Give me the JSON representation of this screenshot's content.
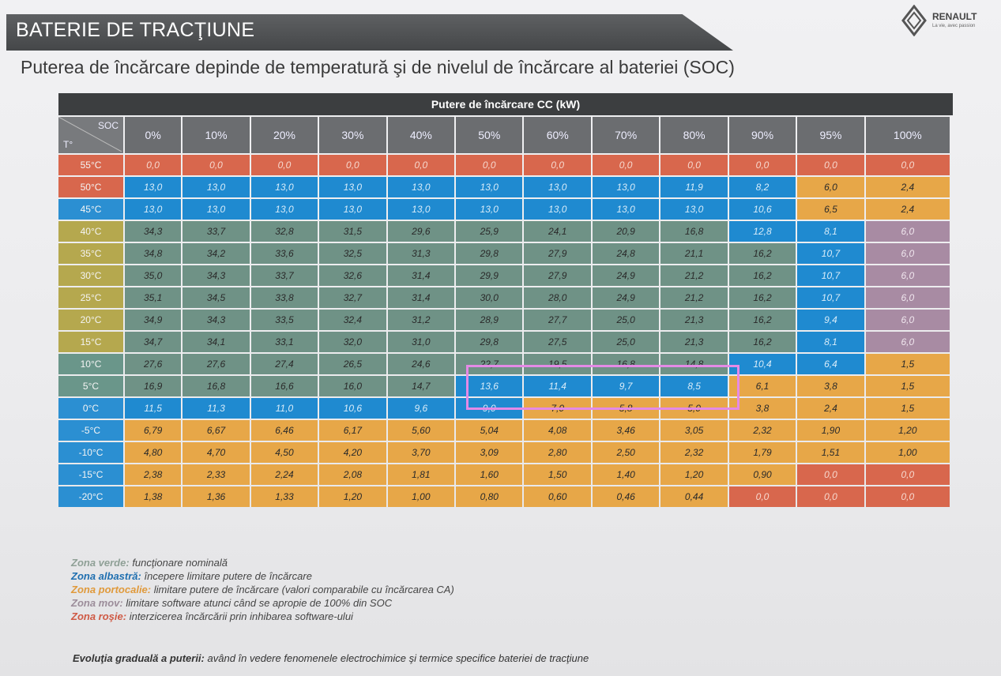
{
  "header": {
    "title": "BATERIE DE TRACŢIUNE",
    "brand": "RENAULT",
    "brand_tagline": "La vie, avec passion"
  },
  "subtitle": "Puterea de încărcare depinde de temperatură şi de nivelul de încărcare al bateriei (SOC)",
  "table": {
    "title": "Putere de încărcare CC (kW)",
    "corner_soc": "SOC",
    "corner_t": "T°",
    "columns": [
      "0%",
      "10%",
      "20%",
      "30%",
      "40%",
      "50%",
      "60%",
      "70%",
      "80%",
      "90%",
      "95%",
      "100%"
    ],
    "rows": [
      {
        "label": "55°C",
        "lc": "red",
        "cells": [
          [
            "0,0",
            "red"
          ],
          [
            "0,0",
            "red"
          ],
          [
            "0,0",
            "red"
          ],
          [
            "0,0",
            "red"
          ],
          [
            "0,0",
            "red"
          ],
          [
            "0,0",
            "red"
          ],
          [
            "0,0",
            "red"
          ],
          [
            "0,0",
            "red"
          ],
          [
            "0,0",
            "red"
          ],
          [
            "0,0",
            "red"
          ],
          [
            "0,0",
            "red"
          ],
          [
            "0,0",
            "red"
          ]
        ]
      },
      {
        "label": "50°C",
        "lc": "red",
        "cells": [
          [
            "13,0",
            "blue"
          ],
          [
            "13,0",
            "blue"
          ],
          [
            "13,0",
            "blue"
          ],
          [
            "13,0",
            "blue"
          ],
          [
            "13,0",
            "blue"
          ],
          [
            "13,0",
            "blue"
          ],
          [
            "13,0",
            "blue"
          ],
          [
            "13,0",
            "blue"
          ],
          [
            "11,9",
            "blue"
          ],
          [
            "8,2",
            "blue"
          ],
          [
            "6,0",
            "orange"
          ],
          [
            "2,4",
            "orange"
          ]
        ]
      },
      {
        "label": "45°C",
        "lc": "blue",
        "cells": [
          [
            "13,0",
            "blue"
          ],
          [
            "13,0",
            "blue"
          ],
          [
            "13,0",
            "blue"
          ],
          [
            "13,0",
            "blue"
          ],
          [
            "13,0",
            "blue"
          ],
          [
            "13,0",
            "blue"
          ],
          [
            "13,0",
            "blue"
          ],
          [
            "13,0",
            "blue"
          ],
          [
            "13,0",
            "blue"
          ],
          [
            "10,6",
            "blue"
          ],
          [
            "6,5",
            "orange"
          ],
          [
            "2,4",
            "orange"
          ]
        ]
      },
      {
        "label": "40°C",
        "lc": "olive",
        "cells": [
          [
            "34,3",
            "green"
          ],
          [
            "33,7",
            "green"
          ],
          [
            "32,8",
            "green"
          ],
          [
            "31,5",
            "green"
          ],
          [
            "29,6",
            "green"
          ],
          [
            "25,9",
            "green"
          ],
          [
            "24,1",
            "green"
          ],
          [
            "20,9",
            "green"
          ],
          [
            "16,8",
            "green"
          ],
          [
            "12,8",
            "blue"
          ],
          [
            "8,1",
            "blue"
          ],
          [
            "6,0",
            "purple"
          ]
        ]
      },
      {
        "label": "35°C",
        "lc": "olive",
        "cells": [
          [
            "34,8",
            "green"
          ],
          [
            "34,2",
            "green"
          ],
          [
            "33,6",
            "green"
          ],
          [
            "32,5",
            "green"
          ],
          [
            "31,3",
            "green"
          ],
          [
            "29,8",
            "green"
          ],
          [
            "27,9",
            "green"
          ],
          [
            "24,8",
            "green"
          ],
          [
            "21,1",
            "green"
          ],
          [
            "16,2",
            "green"
          ],
          [
            "10,7",
            "blue"
          ],
          [
            "6,0",
            "purple"
          ]
        ]
      },
      {
        "label": "30°C",
        "lc": "olive",
        "cells": [
          [
            "35,0",
            "green"
          ],
          [
            "34,3",
            "green"
          ],
          [
            "33,7",
            "green"
          ],
          [
            "32,6",
            "green"
          ],
          [
            "31,4",
            "green"
          ],
          [
            "29,9",
            "green"
          ],
          [
            "27,9",
            "green"
          ],
          [
            "24,9",
            "green"
          ],
          [
            "21,2",
            "green"
          ],
          [
            "16,2",
            "green"
          ],
          [
            "10,7",
            "blue"
          ],
          [
            "6,0",
            "purple"
          ]
        ]
      },
      {
        "label": "25°C",
        "lc": "olive",
        "cells": [
          [
            "35,1",
            "green"
          ],
          [
            "34,5",
            "green"
          ],
          [
            "33,8",
            "green"
          ],
          [
            "32,7",
            "green"
          ],
          [
            "31,4",
            "green"
          ],
          [
            "30,0",
            "green"
          ],
          [
            "28,0",
            "green"
          ],
          [
            "24,9",
            "green"
          ],
          [
            "21,2",
            "green"
          ],
          [
            "16,2",
            "green"
          ],
          [
            "10,7",
            "blue"
          ],
          [
            "6,0",
            "purple"
          ]
        ]
      },
      {
        "label": "20°C",
        "lc": "olive",
        "cells": [
          [
            "34,9",
            "green"
          ],
          [
            "34,3",
            "green"
          ],
          [
            "33,5",
            "green"
          ],
          [
            "32,4",
            "green"
          ],
          [
            "31,2",
            "green"
          ],
          [
            "28,9",
            "green"
          ],
          [
            "27,7",
            "green"
          ],
          [
            "25,0",
            "green"
          ],
          [
            "21,3",
            "green"
          ],
          [
            "16,2",
            "green"
          ],
          [
            "9,4",
            "blue"
          ],
          [
            "6,0",
            "purple"
          ]
        ]
      },
      {
        "label": "15°C",
        "lc": "olive",
        "cells": [
          [
            "34,7",
            "green"
          ],
          [
            "34,1",
            "green"
          ],
          [
            "33,1",
            "green"
          ],
          [
            "32,0",
            "green"
          ],
          [
            "31,0",
            "green"
          ],
          [
            "29,8",
            "green"
          ],
          [
            "27,5",
            "green"
          ],
          [
            "25,0",
            "green"
          ],
          [
            "21,3",
            "green"
          ],
          [
            "16,2",
            "green"
          ],
          [
            "8,1",
            "blue"
          ],
          [
            "6,0",
            "purple"
          ]
        ]
      },
      {
        "label": "10°C",
        "lc": "green",
        "cells": [
          [
            "27,6",
            "green"
          ],
          [
            "27,6",
            "green"
          ],
          [
            "27,4",
            "green"
          ],
          [
            "26,5",
            "green"
          ],
          [
            "24,6",
            "green"
          ],
          [
            "22,7",
            "green"
          ],
          [
            "19,5",
            "green"
          ],
          [
            "16,8",
            "green"
          ],
          [
            "14,8",
            "green"
          ],
          [
            "10,4",
            "blue"
          ],
          [
            "6,4",
            "blue"
          ],
          [
            "1,5",
            "orange"
          ]
        ]
      },
      {
        "label": "5°C",
        "lc": "green",
        "cells": [
          [
            "16,9",
            "green"
          ],
          [
            "16,8",
            "green"
          ],
          [
            "16,6",
            "green"
          ],
          [
            "16,0",
            "green"
          ],
          [
            "14,7",
            "green"
          ],
          [
            "13,6",
            "blue"
          ],
          [
            "11,4",
            "blue"
          ],
          [
            "9,7",
            "blue"
          ],
          [
            "8,5",
            "blue"
          ],
          [
            "6,1",
            "orange"
          ],
          [
            "3,8",
            "orange"
          ],
          [
            "1,5",
            "orange"
          ]
        ]
      },
      {
        "label": "0°C",
        "lc": "blue",
        "cells": [
          [
            "11,5",
            "blue"
          ],
          [
            "11,3",
            "blue"
          ],
          [
            "11,0",
            "blue"
          ],
          [
            "10,6",
            "blue"
          ],
          [
            "9,6",
            "blue"
          ],
          [
            "9,0",
            "blue"
          ],
          [
            "7,0",
            "orange"
          ],
          [
            "5,8",
            "orange"
          ],
          [
            "5,0",
            "orange"
          ],
          [
            "3,8",
            "orange"
          ],
          [
            "2,4",
            "orange"
          ],
          [
            "1,5",
            "orange"
          ]
        ]
      },
      {
        "label": "-5°C",
        "lc": "blue",
        "cells": [
          [
            "6,79",
            "orange"
          ],
          [
            "6,67",
            "orange"
          ],
          [
            "6,46",
            "orange"
          ],
          [
            "6,17",
            "orange"
          ],
          [
            "5,60",
            "orange"
          ],
          [
            "5,04",
            "orange"
          ],
          [
            "4,08",
            "orange"
          ],
          [
            "3,46",
            "orange"
          ],
          [
            "3,05",
            "orange"
          ],
          [
            "2,32",
            "orange"
          ],
          [
            "1,90",
            "orange"
          ],
          [
            "1,20",
            "orange"
          ]
        ]
      },
      {
        "label": "-10°C",
        "lc": "blue",
        "cells": [
          [
            "4,80",
            "orange"
          ],
          [
            "4,70",
            "orange"
          ],
          [
            "4,50",
            "orange"
          ],
          [
            "4,20",
            "orange"
          ],
          [
            "3,70",
            "orange"
          ],
          [
            "3,09",
            "orange"
          ],
          [
            "2,80",
            "orange"
          ],
          [
            "2,50",
            "orange"
          ],
          [
            "2,32",
            "orange"
          ],
          [
            "1,79",
            "orange"
          ],
          [
            "1,51",
            "orange"
          ],
          [
            "1,00",
            "orange"
          ]
        ]
      },
      {
        "label": "-15°C",
        "lc": "blue",
        "cells": [
          [
            "2,38",
            "orange"
          ],
          [
            "2,33",
            "orange"
          ],
          [
            "2,24",
            "orange"
          ],
          [
            "2,08",
            "orange"
          ],
          [
            "1,81",
            "orange"
          ],
          [
            "1,60",
            "orange"
          ],
          [
            "1,50",
            "orange"
          ],
          [
            "1,40",
            "orange"
          ],
          [
            "1,20",
            "orange"
          ],
          [
            "0,90",
            "orange"
          ],
          [
            "0,0",
            "red"
          ],
          [
            "0,0",
            "red"
          ]
        ]
      },
      {
        "label": "-20°C",
        "lc": "blue",
        "cells": [
          [
            "1,38",
            "orange"
          ],
          [
            "1,36",
            "orange"
          ],
          [
            "1,33",
            "orange"
          ],
          [
            "1,20",
            "orange"
          ],
          [
            "1,00",
            "orange"
          ],
          [
            "0,80",
            "orange"
          ],
          [
            "0,60",
            "orange"
          ],
          [
            "0,46",
            "orange"
          ],
          [
            "0,44",
            "orange"
          ],
          [
            "0,0",
            "red"
          ],
          [
            "0,0",
            "red"
          ],
          [
            "0,0",
            "red"
          ]
        ]
      }
    ]
  },
  "legend": [
    {
      "key": "Zona verde:",
      "value": "funcţionare nominală"
    },
    {
      "key": "Zona albastră:",
      "value": "începere limitare putere de încărcare"
    },
    {
      "key": "Zona portocalie:",
      "value": "limitare putere de încărcare (valori comparabile cu încărcarea CA)"
    },
    {
      "key": "Zona mov:",
      "value": "limitare software atunci când se apropie de 100% din SOC"
    },
    {
      "key": "Zona roşie:",
      "value": "interzicerea încărcării prin inhibarea software-ului"
    }
  ],
  "footnote": {
    "key": "Evoluţia graduală a puterii:",
    "value": "având în vedere fenomenele electrochimice şi termice specifice bateriei de tracţiune"
  },
  "colors": {
    "red": "#d8674d",
    "blue": "#1f8ad0",
    "green": "#6f9286",
    "orange": "#e7a748",
    "purple": "#a88ba3",
    "highlight": "#e48ae6"
  }
}
